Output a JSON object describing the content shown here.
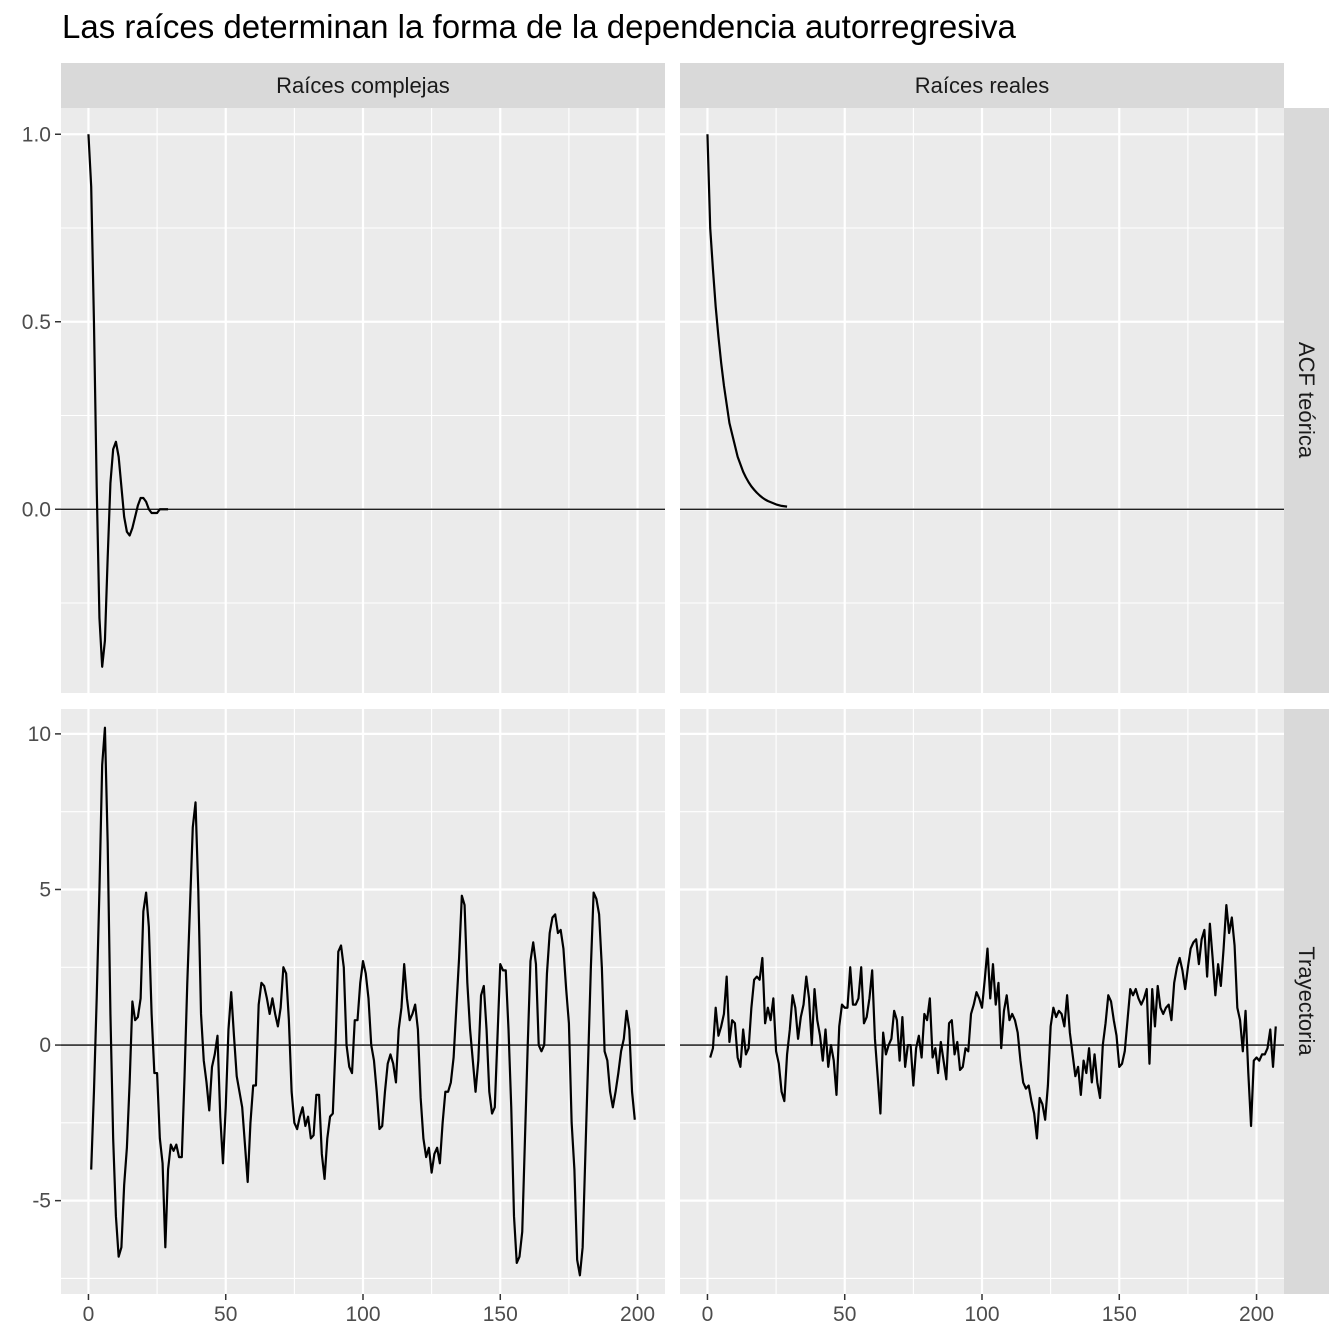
{
  "chart_data": {
    "type": "line",
    "title": "Las raíces determinan la forma de la dependencia autorregresiva",
    "facet_columns": [
      "Raíces complejas",
      "Raíces reales"
    ],
    "facet_rows": [
      "ACF teórica",
      "Trayectoria"
    ],
    "x_ticks": [
      0,
      50,
      100,
      150,
      200
    ],
    "xlim": [
      -10,
      210
    ],
    "grid": true,
    "reference_line": 0,
    "rows": [
      {
        "label": "ACF teórica",
        "ylim": [
          -0.49,
          1.07
        ],
        "y_ticks": [
          0.0,
          0.5,
          1.0
        ],
        "y_tick_labels": [
          "0.0",
          "0.5",
          "1.0"
        ],
        "panels": [
          {
            "facet": "Raíces complejas",
            "x_start": 0,
            "values": [
              1.0,
              0.86,
              0.5,
              0.06,
              -0.29,
              -0.42,
              -0.35,
              -0.13,
              0.07,
              0.16,
              0.18,
              0.14,
              0.06,
              -0.02,
              -0.06,
              -0.07,
              -0.05,
              -0.02,
              0.01,
              0.03,
              0.03,
              0.02,
              0.0,
              -0.01,
              -0.01,
              -0.01,
              0.0,
              0.0,
              0.0,
              0.0
            ]
          },
          {
            "facet": "Raíces reales",
            "x_start": 0,
            "values": [
              1.0,
              0.75,
              0.64,
              0.54,
              0.46,
              0.39,
              0.33,
              0.28,
              0.23,
              0.2,
              0.17,
              0.14,
              0.12,
              0.1,
              0.085,
              0.072,
              0.061,
              0.052,
              0.044,
              0.037,
              0.031,
              0.026,
              0.022,
              0.019,
              0.016,
              0.013,
              0.011,
              0.009,
              0.008,
              0.007
            ]
          }
        ]
      },
      {
        "label": "Trayectoria",
        "ylim": [
          -8,
          10.8
        ],
        "y_ticks": [
          -5,
          0,
          5,
          10
        ],
        "y_tick_labels": [
          "-5",
          "0",
          "5",
          "10"
        ],
        "panels": [
          {
            "facet": "Raíces complejas",
            "x_start": 1,
            "values": [
              -4.0,
              -1.5,
              1.5,
              5.0,
              9.0,
              10.2,
              6.5,
              1.0,
              -3.0,
              -5.5,
              -6.8,
              -6.5,
              -4.5,
              -3.3,
              -1.2,
              1.4,
              0.8,
              0.9,
              1.5,
              4.3,
              4.9,
              3.8,
              1.0,
              -0.9,
              -0.9,
              -3.0,
              -3.8,
              -6.5,
              -4.0,
              -3.2,
              -3.4,
              -3.2,
              -3.6,
              -3.6,
              -1.0,
              2.0,
              4.5,
              7.0,
              7.8,
              5.0,
              1.0,
              -0.5,
              -1.2,
              -2.1,
              -0.7,
              -0.3,
              0.3,
              -2.3,
              -3.8,
              -2.0,
              0.5,
              1.7,
              0.3,
              -1.0,
              -1.5,
              -2.0,
              -3.2,
              -4.4,
              -2.5,
              -1.3,
              -1.3,
              1.3,
              2.0,
              1.9,
              1.5,
              1.0,
              1.5,
              1.0,
              0.6,
              1.2,
              2.5,
              2.3,
              0.8,
              -1.5,
              -2.5,
              -2.7,
              -2.3,
              -2.0,
              -2.6,
              -2.3,
              -3.0,
              -2.9,
              -1.6,
              -1.6,
              -3.5,
              -4.3,
              -3.0,
              -2.3,
              -2.2,
              0.0,
              3.0,
              3.2,
              2.5,
              0.0,
              -0.7,
              -0.9,
              0.8,
              0.8,
              2.0,
              2.7,
              2.3,
              1.5,
              0.0,
              -0.5,
              -1.5,
              -2.7,
              -2.6,
              -1.5,
              -0.6,
              -0.3,
              -0.6,
              -1.2,
              0.5,
              1.2,
              2.6,
              1.5,
              0.8,
              1.0,
              1.3,
              0.5,
              -1.7,
              -3.0,
              -3.6,
              -3.3,
              -4.1,
              -3.5,
              -3.3,
              -3.8,
              -2.5,
              -1.5,
              -1.5,
              -1.2,
              -0.4,
              1.2,
              2.8,
              4.8,
              4.5,
              2.0,
              0.5,
              -0.5,
              -1.5,
              -0.5,
              1.6,
              1.9,
              0.5,
              -1.5,
              -2.2,
              -2.0,
              0.3,
              2.6,
              2.4,
              2.4,
              0.5,
              -2.0,
              -5.5,
              -7.0,
              -6.8,
              -6.0,
              -3.0,
              0.0,
              2.7,
              3.3,
              2.6,
              0.0,
              -0.2,
              0.0,
              2.3,
              3.6,
              4.1,
              4.2,
              3.6,
              3.7,
              3.1,
              1.8,
              0.7,
              -2.5,
              -4.0,
              -6.9,
              -7.4,
              -6.5,
              -3.5,
              -0.5,
              2.5,
              4.9,
              4.7,
              4.2,
              2.5,
              -0.2,
              -0.5,
              -1.5,
              -2.0,
              -1.5,
              -0.9,
              -0.2,
              0.2,
              1.1,
              0.5,
              -1.5,
              -2.4
            ]
          },
          {
            "facet": "Raíces reales",
            "x_start": 1,
            "values": [
              -0.4,
              -0.1,
              1.2,
              0.3,
              0.6,
              1.0,
              2.2,
              0.1,
              0.8,
              0.7,
              -0.4,
              -0.7,
              0.5,
              -0.3,
              -0.1,
              1.2,
              2.1,
              2.2,
              2.1,
              2.8,
              0.7,
              1.2,
              0.8,
              1.5,
              -0.2,
              -0.6,
              -1.5,
              -1.8,
              -0.3,
              0.5,
              1.6,
              1.2,
              0.2,
              0.9,
              1.3,
              2.2,
              1.5,
              0.0,
              1.8,
              0.8,
              0.3,
              -0.5,
              0.5,
              -0.7,
              0.0,
              -0.5,
              -1.6,
              0.6,
              1.3,
              1.2,
              1.2,
              2.5,
              1.3,
              1.3,
              1.5,
              2.5,
              0.7,
              0.9,
              1.5,
              2.4,
              0.2,
              -1.0,
              -2.2,
              0.4,
              -0.3,
              0.0,
              0.2,
              1.1,
              0.8,
              -0.5,
              0.9,
              -0.7,
              0.0,
              0.0,
              -1.3,
              -0.1,
              0.3,
              -0.4,
              1.0,
              0.8,
              1.5,
              -0.4,
              -0.1,
              -0.9,
              0.1,
              -0.5,
              -1.1,
              0.7,
              0.8,
              -0.3,
              0.1,
              -0.8,
              -0.7,
              -0.1,
              -0.2,
              1.0,
              1.3,
              1.7,
              1.5,
              1.2,
              2.1,
              3.1,
              1.5,
              2.6,
              1.3,
              2.0,
              -0.1,
              1.1,
              1.6,
              0.8,
              1.0,
              0.8,
              0.4,
              -0.5,
              -1.2,
              -1.4,
              -1.3,
              -1.8,
              -2.2,
              -3.0,
              -1.7,
              -1.9,
              -2.4,
              -1.3,
              0.6,
              1.2,
              0.9,
              1.1,
              1.0,
              0.6,
              1.6,
              0.4,
              -0.3,
              -1.0,
              -0.7,
              -1.6,
              -0.5,
              -0.9,
              -0.1,
              -1.2,
              -0.3,
              -1.2,
              -1.7,
              0.0,
              0.7,
              1.6,
              1.4,
              0.8,
              0.3,
              -0.7,
              -0.6,
              -0.2,
              0.8,
              1.8,
              1.6,
              1.8,
              1.5,
              1.3,
              1.5,
              1.8,
              -0.6,
              1.8,
              0.6,
              1.9,
              1.2,
              1.0,
              1.2,
              1.3,
              0.8,
              2.0,
              2.5,
              2.8,
              2.4,
              1.8,
              2.5,
              3.1,
              3.3,
              3.4,
              2.6,
              3.4,
              3.7,
              2.2,
              3.9,
              2.8,
              1.6,
              2.6,
              1.9,
              3.1,
              4.5,
              3.6,
              4.1,
              3.2,
              1.2,
              0.8,
              -0.2,
              1.1,
              -0.9,
              -2.6,
              -0.5,
              -0.4,
              -0.5,
              -0.3,
              -0.3,
              -0.1,
              0.5,
              -0.7,
              0.6
            ]
          }
        ]
      }
    ]
  }
}
